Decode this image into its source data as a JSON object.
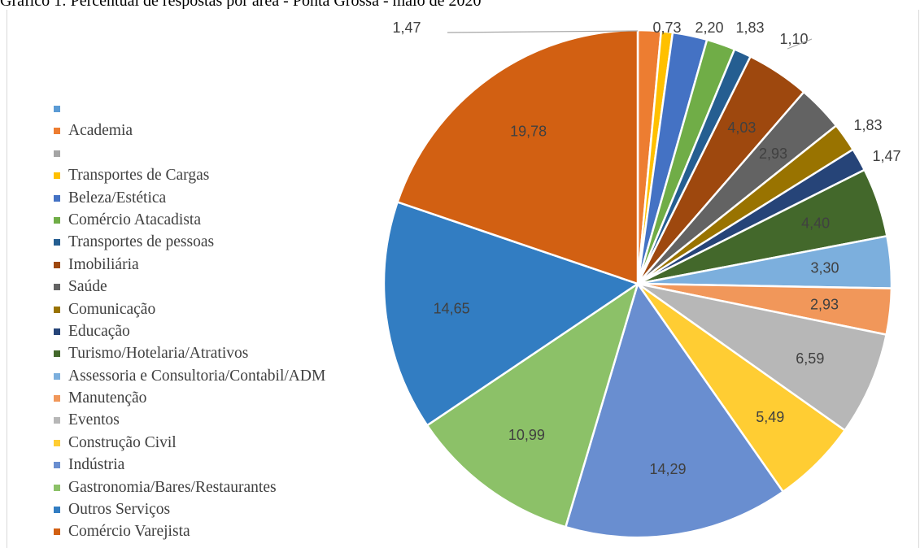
{
  "title": "Gráfico 1: Percentual de respostas por área - Ponta Grossa - maio de 2020",
  "chart_data": {
    "type": "pie",
    "title": "Gráfico 1: Percentual de respostas por área - Ponta Grossa - maio de 2020",
    "legend_position": "left",
    "slices": [
      {
        "name": "Academia",
        "value": 1.47,
        "label": "1,47",
        "color": "#ED7D31"
      },
      {
        "name": "Transportes de Cargas",
        "value": 0.73,
        "label": "0,73",
        "color": "#FFC000"
      },
      {
        "name": "Beleza/Estética",
        "value": 2.2,
        "label": "2,20",
        "color": "#4472C4"
      },
      {
        "name": "Comércio Atacadista",
        "value": 1.83,
        "label": "1,83",
        "color": "#70AD47"
      },
      {
        "name": "Transportes de pessoas",
        "value": 1.1,
        "label": "1,10",
        "color": "#255E91"
      },
      {
        "name": "Imobiliária",
        "value": 4.03,
        "label": "4,03",
        "color": "#9E480E"
      },
      {
        "name": "Saúde",
        "value": 2.93,
        "label": "2,93",
        "color": "#636363"
      },
      {
        "name": "Comunicação",
        "value": 1.83,
        "label": "1,83",
        "color": "#997300"
      },
      {
        "name": "Educação",
        "value": 1.47,
        "label": "1,47",
        "color": "#264478"
      },
      {
        "name": "Turismo/Hotelaria/Atrativos",
        "value": 4.4,
        "label": "4,40",
        "color": "#43682B"
      },
      {
        "name": "Assessoria e Consultoria/Contabil/ADM",
        "value": 3.3,
        "label": "3,30",
        "color": "#7CAFDD"
      },
      {
        "name": "Manutenção",
        "value": 2.93,
        "label": "2,93",
        "color": "#F1975A"
      },
      {
        "name": "Eventos",
        "value": 6.59,
        "label": "6,59",
        "color": "#B7B7B7"
      },
      {
        "name": "Construção Civil",
        "value": 5.49,
        "label": "5,49",
        "color": "#FFCD33"
      },
      {
        "name": "Indústria",
        "value": 14.29,
        "label": "14,29",
        "color": "#698ED0"
      },
      {
        "name": "Gastronomia/Bares/Restaurantes",
        "value": 10.99,
        "label": "10,99",
        "color": "#8CC168"
      },
      {
        "name": "Outros Serviços",
        "value": 14.65,
        "label": "14,65",
        "color": "#327DC2"
      },
      {
        "name": "Comércio Varejista",
        "value": 19.78,
        "label": "19,78",
        "color": "#D26012"
      }
    ]
  },
  "legend": [
    {
      "label": "",
      "color": "#5B9BD5"
    },
    {
      "label": "Academia",
      "color": "#ED7D31"
    },
    {
      "label": "",
      "color": "#A5A5A5"
    },
    {
      "label": "Transportes de Cargas",
      "color": "#FFC000"
    },
    {
      "label": "Beleza/Estética",
      "color": "#4472C4"
    },
    {
      "label": "Comércio Atacadista",
      "color": "#70AD47"
    },
    {
      "label": "Transportes de pessoas",
      "color": "#255E91"
    },
    {
      "label": "Imobiliária",
      "color": "#9E480E"
    },
    {
      "label": "Saúde",
      "color": "#636363"
    },
    {
      "label": "Comunicação",
      "color": "#997300"
    },
    {
      "label": "Educação",
      "color": "#264478"
    },
    {
      "label": "Turismo/Hotelaria/Atrativos",
      "color": "#43682B"
    },
    {
      "label": "Assessoria e Consultoria/Contabil/ADM",
      "color": "#7CAFDD"
    },
    {
      "label": "Manutenção",
      "color": "#F1975A"
    },
    {
      "label": "Eventos",
      "color": "#B7B7B7"
    },
    {
      "label": "Construção Civil",
      "color": "#FFCD33"
    },
    {
      "label": "Indústria",
      "color": "#698ED0"
    },
    {
      "label": "Gastronomia/Bares/Restaurantes",
      "color": "#8CC168"
    },
    {
      "label": "Outros Serviços",
      "color": "#327DC2"
    },
    {
      "label": "Comércio Varejista",
      "color": "#D26012"
    }
  ]
}
